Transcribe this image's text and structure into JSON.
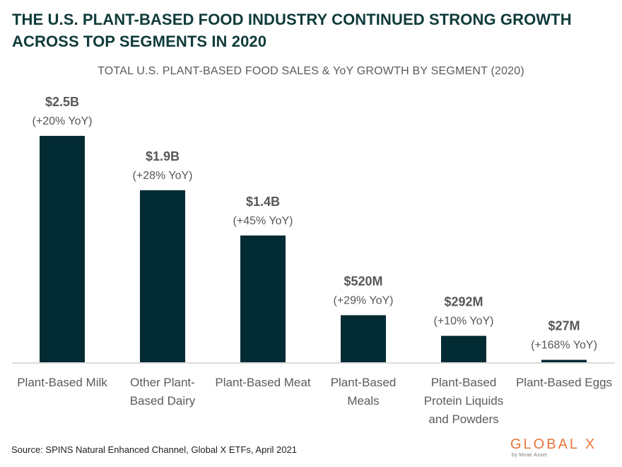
{
  "title_lines": [
    "THE U.S. PLANT-BASED FOOD INDUSTRY CONTINUED STRONG GROWTH",
    "ACROSS TOP SEGMENTS IN 2020"
  ],
  "footer": {
    "source": "Source: SPINS Natural Enhanced Channel, Global X ETFs, April 2021",
    "logo_text": "GLOBAL X",
    "logo_subtext": "by Mirae Asset"
  },
  "colors": {
    "bar": "#032b33",
    "title": "#0f3b3a",
    "logo": "#e8743b"
  },
  "chart_data": {
    "type": "bar",
    "title": "TOTAL U.S. PLANT-BASED FOOD SALES & YoY GROWTH BY SEGMENT (2020)",
    "categories": [
      [
        "Plant-Based Milk"
      ],
      [
        "Other Plant-",
        "Based Dairy"
      ],
      [
        "Plant-Based Meat"
      ],
      [
        "Plant-Based",
        "Meals"
      ],
      [
        "Plant-Based",
        "Protein Liquids",
        "and Powders"
      ],
      [
        "Plant-Based Eggs"
      ]
    ],
    "values_musd": [
      2500,
      1900,
      1400,
      520,
      292,
      27
    ],
    "value_labels": [
      "$2.5B",
      "$1.9B",
      "$1.4B",
      "$520M",
      "$292M",
      "$27M"
    ],
    "yoy_labels": [
      "(+20% YoY)",
      "(+28% YoY)",
      "(+45% YoY)",
      "(+29% YoY)",
      "(+10% YoY)",
      "(+168% YoY)"
    ],
    "ylim": [
      0,
      2500
    ],
    "grid": false,
    "legend": "none"
  }
}
